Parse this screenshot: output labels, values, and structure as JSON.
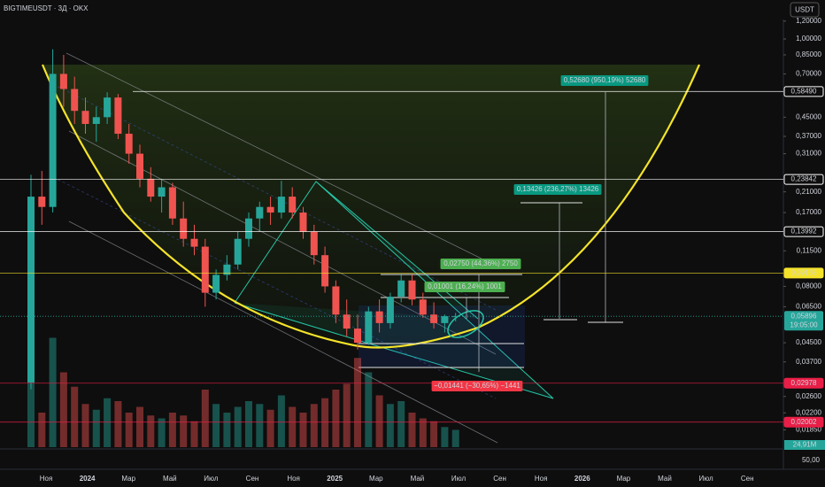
{
  "chart_data": {
    "type": "candlestick",
    "title": "BIGTIMEUSDT · 3Д · OKX",
    "currency": "USDT",
    "log_scale": true,
    "grid": false,
    "ylim": [
      0.0155,
      1.22
    ],
    "yticks": [
      {
        "value": 1.2,
        "label": "1,20000"
      },
      {
        "value": 1.0,
        "label": "1,00000"
      },
      {
        "value": 0.85,
        "label": "0,85000"
      },
      {
        "value": 0.7,
        "label": "0,70000"
      },
      {
        "value": 0.45,
        "label": "0,45000"
      },
      {
        "value": 0.37,
        "label": "0,37000"
      },
      {
        "value": 0.31,
        "label": "0,31000"
      },
      {
        "value": 0.21,
        "label": "0,21000"
      },
      {
        "value": 0.17,
        "label": "0,17000"
      },
      {
        "value": 0.115,
        "label": "0,11500"
      },
      {
        "value": 0.08,
        "label": "0,08000"
      },
      {
        "value": 0.065,
        "label": "0,06500"
      },
      {
        "value": 0.045,
        "label": "0,04500"
      },
      {
        "value": 0.037,
        "label": "0,03700"
      },
      {
        "value": 0.026,
        "label": "0,02600"
      },
      {
        "value": 0.022,
        "label": "0,02200"
      },
      {
        "value": 0.0185,
        "label": "0,01850"
      }
    ],
    "categories": [
      "Ноя",
      "2024",
      "Мар",
      "Май",
      "Июл",
      "Сен",
      "Ноя",
      "2025",
      "Мар",
      "Май",
      "Июл",
      "Сен",
      "Ноя",
      "2026",
      "Мар",
      "Май",
      "Июл",
      "Сен"
    ],
    "up_color": "#26a69a",
    "down_color": "#ef5350",
    "ohlc": [
      [
        0.03,
        0.25,
        0.028,
        0.2
      ],
      [
        0.2,
        0.26,
        0.15,
        0.18
      ],
      [
        0.18,
        0.9,
        0.17,
        0.7
      ],
      [
        0.7,
        0.85,
        0.5,
        0.6
      ],
      [
        0.6,
        0.68,
        0.42,
        0.48
      ],
      [
        0.48,
        0.55,
        0.38,
        0.42
      ],
      [
        0.42,
        0.5,
        0.35,
        0.45
      ],
      [
        0.45,
        0.58,
        0.42,
        0.55
      ],
      [
        0.55,
        0.57,
        0.36,
        0.38
      ],
      [
        0.38,
        0.42,
        0.28,
        0.31
      ],
      [
        0.31,
        0.34,
        0.22,
        0.24
      ],
      [
        0.24,
        0.27,
        0.19,
        0.2
      ],
      [
        0.2,
        0.24,
        0.17,
        0.22
      ],
      [
        0.22,
        0.23,
        0.15,
        0.16
      ],
      [
        0.16,
        0.19,
        0.12,
        0.13
      ],
      [
        0.13,
        0.15,
        0.11,
        0.12
      ],
      [
        0.12,
        0.13,
        0.065,
        0.075
      ],
      [
        0.075,
        0.095,
        0.07,
        0.09
      ],
      [
        0.09,
        0.11,
        0.085,
        0.1
      ],
      [
        0.1,
        0.14,
        0.095,
        0.13
      ],
      [
        0.13,
        0.17,
        0.12,
        0.16
      ],
      [
        0.16,
        0.19,
        0.14,
        0.18
      ],
      [
        0.18,
        0.2,
        0.15,
        0.17
      ],
      [
        0.17,
        0.235,
        0.16,
        0.2
      ],
      [
        0.2,
        0.22,
        0.16,
        0.17
      ],
      [
        0.17,
        0.18,
        0.13,
        0.14
      ],
      [
        0.14,
        0.15,
        0.1,
        0.11
      ],
      [
        0.11,
        0.12,
        0.075,
        0.08
      ],
      [
        0.08,
        0.085,
        0.055,
        0.06
      ],
      [
        0.06,
        0.07,
        0.048,
        0.052
      ],
      [
        0.052,
        0.06,
        0.042,
        0.045
      ],
      [
        0.045,
        0.065,
        0.044,
        0.062
      ],
      [
        0.062,
        0.07,
        0.05,
        0.055
      ],
      [
        0.055,
        0.075,
        0.052,
        0.072
      ],
      [
        0.072,
        0.09,
        0.068,
        0.085
      ],
      [
        0.085,
        0.09,
        0.066,
        0.07
      ],
      [
        0.07,
        0.075,
        0.058,
        0.06
      ],
      [
        0.06,
        0.068,
        0.052,
        0.055
      ],
      [
        0.055,
        0.06,
        0.05,
        0.059
      ],
      [
        0.059,
        0.061,
        0.056,
        0.059
      ]
    ],
    "volume": [
      300,
      120,
      380,
      260,
      210,
      150,
      130,
      170,
      160,
      120,
      140,
      110,
      100,
      120,
      110,
      90,
      200,
      150,
      120,
      140,
      160,
      150,
      130,
      180,
      140,
      120,
      150,
      170,
      200,
      220,
      310,
      260,
      180,
      150,
      160,
      120,
      100,
      90,
      70,
      60
    ],
    "volume_ylim": [
      0,
      400
    ],
    "volume_label": "50,00",
    "volume_tag": "24,91M",
    "levels": [
      {
        "value": 0.5849,
        "label": "0,58490",
        "color": "#ffffff"
      },
      {
        "value": 0.23842,
        "label": "0,23842",
        "color": "#ffffff"
      },
      {
        "value": 0.13992,
        "label": "0,13992",
        "color": "#ffffff"
      },
      {
        "value": 0.09165,
        "label": "0,09165",
        "color": "#f5e32a"
      },
      {
        "value": 0.02978,
        "label": "0,02978",
        "color": "#e91e47"
      },
      {
        "value": 0.02002,
        "label": "0,02002",
        "color": "#e91e47"
      }
    ],
    "last_price": {
      "value": 0.05896,
      "label": "0,05896",
      "countdown": "19:05:00"
    },
    "annotations": [
      {
        "text": "0,52680 (950,19%) 52680",
        "color": "#089981"
      },
      {
        "text": "0,13426 (236,27%) 13426",
        "color": "#089981"
      },
      {
        "text": "0,02750 (44,36%) 2750",
        "color": "#4caf50"
      },
      {
        "text": "0,01001 (16,24%) 1001",
        "color": "#4caf50"
      },
      {
        "text": "−0,01441 (−30,65%) −1441",
        "color": "#f23645"
      }
    ]
  }
}
